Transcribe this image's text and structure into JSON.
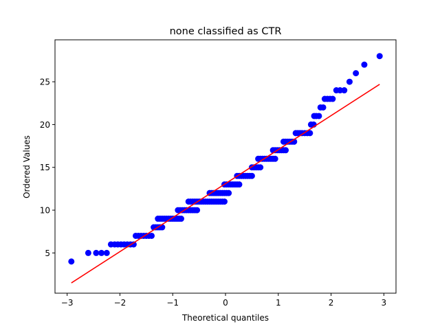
{
  "chart_data": {
    "type": "scatter",
    "title": "none classified as CTR",
    "xlabel": "Theoretical quantiles",
    "ylabel": "Ordered Values",
    "xlim": [
      -3.23,
      3.23
    ],
    "ylim": [
      0.3,
      29.9
    ],
    "xticks": [
      -3,
      -2,
      -1,
      0,
      1,
      2,
      3
    ],
    "xtick_labels": [
      "−3",
      "−2",
      "−1",
      "0",
      "1",
      "2",
      "3"
    ],
    "yticks": [
      5,
      10,
      15,
      20,
      25
    ],
    "ytick_labels": [
      "5",
      "10",
      "15",
      "20",
      "25"
    ],
    "grid": false,
    "marker_color": "#0000ff",
    "line_color": "#ff0000",
    "fit_line": {
      "x": [
        -2.92,
        2.92
      ],
      "y": [
        1.5,
        24.7
      ]
    },
    "series": [
      {
        "points": [
          [
            -2.92,
            4
          ],
          [
            -2.6,
            5
          ],
          [
            -2.45,
            5
          ],
          [
            -2.35,
            5
          ],
          [
            -2.25,
            5
          ],
          [
            -2.17,
            6
          ],
          [
            -2.1,
            6
          ],
          [
            -2.04,
            6
          ],
          [
            -1.98,
            6
          ],
          [
            -1.92,
            6
          ],
          [
            -1.86,
            6
          ],
          [
            -1.8,
            6
          ],
          [
            -1.74,
            6
          ],
          [
            -1.7,
            7
          ],
          [
            -1.65,
            7
          ],
          [
            -1.6,
            7
          ],
          [
            -1.55,
            7
          ],
          [
            -1.5,
            7
          ],
          [
            -1.45,
            7
          ],
          [
            -1.4,
            7
          ],
          [
            -1.36,
            8
          ],
          [
            -1.32,
            8
          ],
          [
            -1.28,
            8
          ],
          [
            -1.24,
            8
          ],
          [
            -1.2,
            8
          ],
          [
            -1.28,
            9
          ],
          [
            -1.24,
            9
          ],
          [
            -1.2,
            9
          ],
          [
            -1.16,
            9
          ],
          [
            -1.12,
            9
          ],
          [
            -1.08,
            9
          ],
          [
            -1.04,
            9
          ],
          [
            -1.0,
            9
          ],
          [
            -0.96,
            9
          ],
          [
            -0.92,
            9
          ],
          [
            -0.88,
            9
          ],
          [
            -0.84,
            9
          ],
          [
            -0.9,
            10
          ],
          [
            -0.86,
            10
          ],
          [
            -0.82,
            10
          ],
          [
            -0.78,
            10
          ],
          [
            -0.74,
            10
          ],
          [
            -0.7,
            10
          ],
          [
            -0.66,
            10
          ],
          [
            -0.62,
            10
          ],
          [
            -0.58,
            10
          ],
          [
            -0.54,
            10
          ],
          [
            -0.7,
            11
          ],
          [
            -0.66,
            11
          ],
          [
            -0.62,
            11
          ],
          [
            -0.58,
            11
          ],
          [
            -0.54,
            11
          ],
          [
            -0.5,
            11
          ],
          [
            -0.46,
            11
          ],
          [
            -0.42,
            11
          ],
          [
            -0.38,
            11
          ],
          [
            -0.34,
            11
          ],
          [
            -0.3,
            11
          ],
          [
            -0.26,
            11
          ],
          [
            -0.22,
            11
          ],
          [
            -0.18,
            11
          ],
          [
            -0.14,
            11
          ],
          [
            -0.1,
            11
          ],
          [
            -0.06,
            11
          ],
          [
            -0.02,
            11
          ],
          [
            -0.3,
            12
          ],
          [
            -0.26,
            12
          ],
          [
            -0.22,
            12
          ],
          [
            -0.18,
            12
          ],
          [
            -0.14,
            12
          ],
          [
            -0.1,
            12
          ],
          [
            -0.06,
            12
          ],
          [
            -0.02,
            12
          ],
          [
            0.02,
            12
          ],
          [
            0.06,
            12
          ],
          [
            -0.02,
            13
          ],
          [
            0.02,
            13
          ],
          [
            0.06,
            13
          ],
          [
            0.1,
            13
          ],
          [
            0.14,
            13
          ],
          [
            0.18,
            13
          ],
          [
            0.22,
            13
          ],
          [
            0.26,
            13
          ],
          [
            0.22,
            14
          ],
          [
            0.26,
            14
          ],
          [
            0.3,
            14
          ],
          [
            0.34,
            14
          ],
          [
            0.38,
            14
          ],
          [
            0.42,
            14
          ],
          [
            0.46,
            14
          ],
          [
            0.5,
            14
          ],
          [
            0.5,
            15
          ],
          [
            0.54,
            15
          ],
          [
            0.58,
            15
          ],
          [
            0.62,
            15
          ],
          [
            0.66,
            15
          ],
          [
            0.62,
            16
          ],
          [
            0.66,
            16
          ],
          [
            0.7,
            16
          ],
          [
            0.74,
            16
          ],
          [
            0.78,
            16
          ],
          [
            0.82,
            16
          ],
          [
            0.86,
            16
          ],
          [
            0.9,
            16
          ],
          [
            0.94,
            16
          ],
          [
            0.9,
            17
          ],
          [
            0.94,
            17
          ],
          [
            0.98,
            17
          ],
          [
            1.02,
            17
          ],
          [
            1.06,
            17
          ],
          [
            1.1,
            17
          ],
          [
            1.14,
            17
          ],
          [
            1.1,
            18
          ],
          [
            1.14,
            18
          ],
          [
            1.18,
            18
          ],
          [
            1.22,
            18
          ],
          [
            1.26,
            18
          ],
          [
            1.3,
            18
          ],
          [
            1.33,
            19
          ],
          [
            1.37,
            19
          ],
          [
            1.41,
            19
          ],
          [
            1.45,
            19
          ],
          [
            1.5,
            19
          ],
          [
            1.55,
            19
          ],
          [
            1.6,
            19
          ],
          [
            1.62,
            20
          ],
          [
            1.67,
            20
          ],
          [
            1.68,
            21
          ],
          [
            1.72,
            21
          ],
          [
            1.77,
            21
          ],
          [
            1.8,
            22
          ],
          [
            1.85,
            22
          ],
          [
            1.88,
            23
          ],
          [
            1.93,
            23
          ],
          [
            1.98,
            23
          ],
          [
            2.03,
            23
          ],
          [
            2.1,
            24
          ],
          [
            2.17,
            24
          ],
          [
            2.25,
            24
          ],
          [
            2.35,
            25
          ],
          [
            2.47,
            26
          ],
          [
            2.63,
            27
          ],
          [
            2.92,
            28
          ]
        ]
      }
    ]
  }
}
